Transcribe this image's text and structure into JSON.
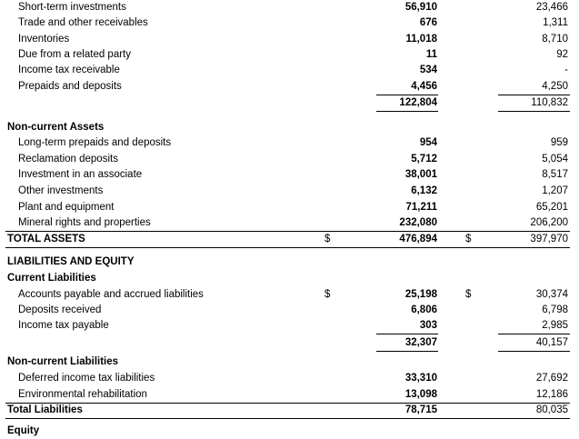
{
  "rows": [
    {
      "label": "Short-term investments",
      "current": "56,910",
      "prior": "23,466"
    },
    {
      "label": "Trade and other receivables",
      "current": "676",
      "prior": "1,311"
    },
    {
      "label": "Inventories",
      "current": "11,018",
      "prior": "8,710"
    },
    {
      "label": "Due from a related party",
      "current": "11",
      "prior": "92"
    },
    {
      "label": "Income tax receivable",
      "current": "534",
      "prior": "-"
    },
    {
      "label": "Prepaids and deposits",
      "current": "4,456",
      "prior": "4,250"
    },
    {
      "current": "122,804",
      "prior": "110,832"
    },
    {
      "label": "Non-current Assets"
    },
    {
      "label": "Long-term prepaids and deposits",
      "current": "954",
      "prior": "959"
    },
    {
      "label": "Reclamation deposits",
      "current": "5,712",
      "prior": "5,054"
    },
    {
      "label": "Investment in an associate",
      "current": "38,001",
      "prior": "8,517"
    },
    {
      "label": "Other investments",
      "current": "6,132",
      "prior": "1,207"
    },
    {
      "label": "Plant and equipment",
      "current": "71,211",
      "prior": "65,201"
    },
    {
      "label": "Mineral rights and properties",
      "current": "232,080",
      "prior": "206,200"
    },
    {
      "label": "TOTAL ASSETS",
      "current_sign": "$",
      "current": "476,894",
      "prior_sign": "$",
      "prior": "397,970"
    },
    {
      "label": "LIABILITIES AND EQUITY"
    },
    {
      "label": "Current Liabilities"
    },
    {
      "label": "Accounts payable and accrued liabilities",
      "current_sign": "$",
      "current": "25,198",
      "prior_sign": "$",
      "prior": "30,374"
    },
    {
      "label": "Deposits received",
      "current": "6,806",
      "prior": "6,798"
    },
    {
      "label": "Income tax payable",
      "current": "303",
      "prior": "2,985"
    },
    {
      "current": "32,307",
      "prior": "40,157"
    },
    {
      "label": "Non-current Liabilities"
    },
    {
      "label": "Deferred income tax liabilities",
      "current": "33,310",
      "prior": "27,692"
    },
    {
      "label": "Environmental rehabilitation",
      "current": "13,098",
      "prior": "12,186"
    },
    {
      "label": "Total Liabilities",
      "current": "78,715",
      "prior": "80,035"
    },
    {
      "label": "Equity"
    }
  ]
}
